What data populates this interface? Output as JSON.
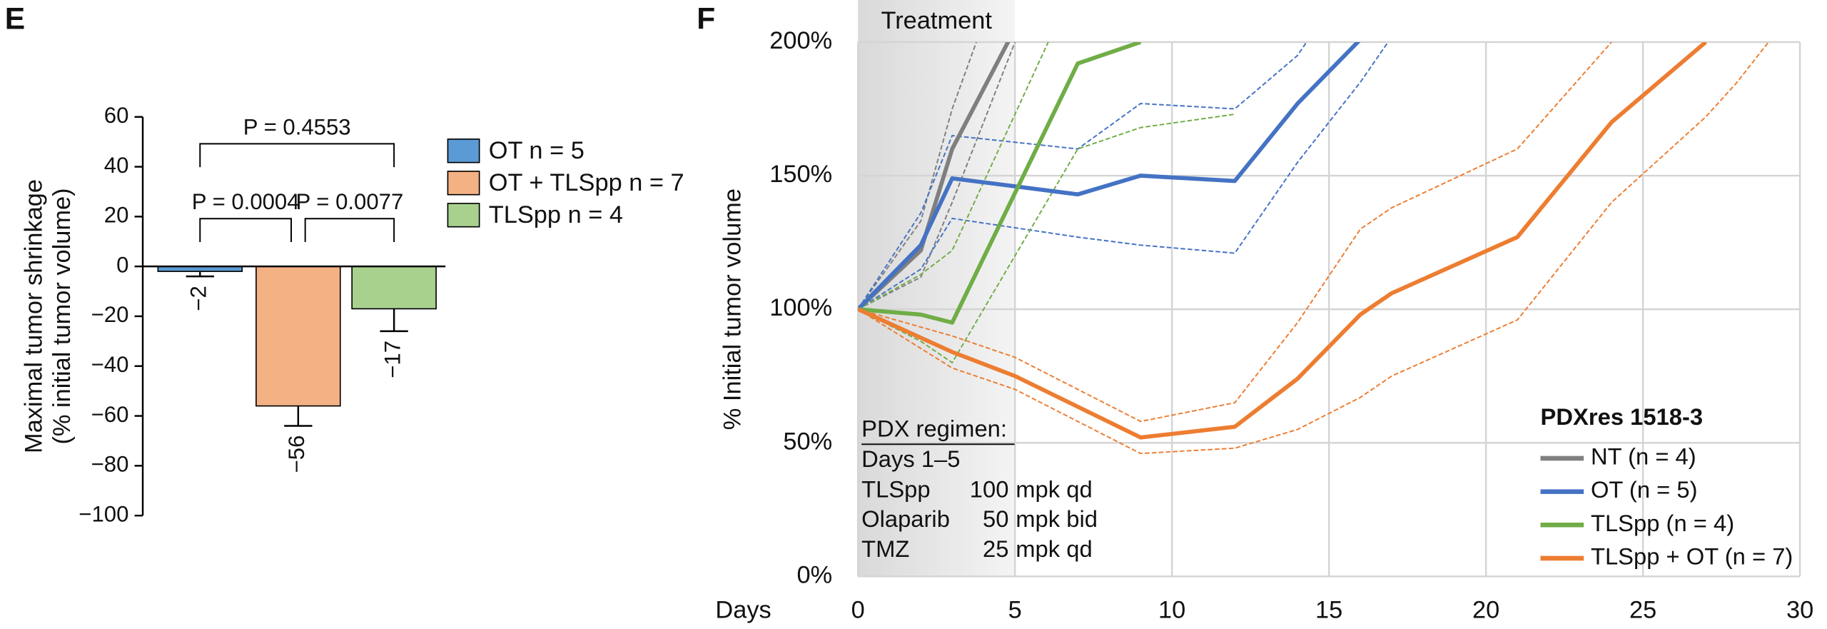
{
  "chart_data": [
    {
      "type": "bar",
      "panel": "E",
      "ylabel": [
        "Maximal tumor shrinkage",
        "(% initial tumor volume)"
      ],
      "ylim": [
        -100,
        60
      ],
      "yticks": [
        {
          "value": -100,
          "label": "−100"
        },
        {
          "value": -80,
          "label": "−80"
        },
        {
          "value": -60,
          "label": "−60"
        },
        {
          "value": -40,
          "label": "−40"
        },
        {
          "value": -20,
          "label": "−20"
        },
        0,
        20,
        40,
        60
      ],
      "series": [
        {
          "name": "OT n = 5",
          "color": "#5b9bd5",
          "values": [
            -2
          ],
          "errors": [
            2
          ],
          "value_labels": [
            "−2"
          ]
        },
        {
          "name": "OT + TLSpp n = 7",
          "color": "#f4b183",
          "values": [
            -56
          ],
          "errors": [
            8
          ],
          "value_labels": [
            "−56"
          ]
        },
        {
          "name": "TLSpp n = 4",
          "color": "#a9d18e",
          "values": [
            -17
          ],
          "errors": [
            9
          ],
          "value_labels": [
            "−17"
          ]
        }
      ],
      "annotations": [
        "P = 0.4553",
        "P = 0.0004",
        "P = 0.0077"
      ]
    },
    {
      "type": "line",
      "panel": "F",
      "xlabel": "Days",
      "ylabel": "% Initial tumor volume",
      "xlim": [
        0,
        30
      ],
      "xticks": [
        0,
        5,
        10,
        15,
        20,
        25,
        30
      ],
      "ylim": [
        0,
        200
      ],
      "yticks": [
        {
          "value": 0,
          "label": "0%"
        },
        {
          "value": 50,
          "label": "50%"
        },
        {
          "value": 100,
          "label": "100%"
        },
        {
          "value": 150,
          "label": "150%"
        },
        {
          "value": 200,
          "label": "200%"
        }
      ],
      "grid": true,
      "shade": {
        "label": "Treatment",
        "span": [
          0,
          5
        ]
      },
      "regimen": {
        "title": "PDX regimen:",
        "days": "Days 1–5",
        "rows": [
          [
            "TLSpp",
            "100",
            "mpk qd"
          ],
          [
            "Olaparib",
            "50",
            "mpk bid"
          ],
          [
            "TMZ",
            "25",
            "mpk qd"
          ]
        ]
      },
      "legend_title": "PDXres 1518-3",
      "legend": "lower right",
      "series": [
        {
          "name": "NT (n = 4)",
          "color": "#7f7f7f",
          "x": [
            0,
            2,
            3,
            5
          ],
          "values": [
            100,
            122,
            160,
            205
          ],
          "upper": [
            100,
            133,
            175,
            240
          ],
          "lower": [
            100,
            112,
            140,
            200
          ]
        },
        {
          "name": "OT (n = 5)",
          "color": "#4472c4",
          "x": [
            0,
            2,
            3,
            7,
            9,
            12,
            14,
            16,
            17
          ],
          "values": [
            100,
            124,
            149,
            143,
            150,
            148,
            177,
            201,
            null
          ],
          "upper": [
            100,
            136,
            165,
            160,
            177,
            175,
            195,
            230,
            null
          ],
          "lower": [
            100,
            115,
            134,
            127,
            124,
            121,
            155,
            185,
            202
          ]
        },
        {
          "name": "TLSpp (n = 4)",
          "color": "#70ad47",
          "x": [
            0,
            2,
            3,
            7,
            9,
            12
          ],
          "values": [
            100,
            98,
            95,
            192,
            200,
            null
          ],
          "upper": [
            100,
            113,
            122,
            224,
            250,
            null
          ],
          "lower": [
            100,
            88,
            80,
            160,
            168,
            173
          ]
        },
        {
          "name": "TLSpp + OT (n = 7)",
          "color": "#ed7d31",
          "x": [
            0,
            3,
            5,
            9,
            12,
            14,
            16,
            17,
            21,
            24,
            27,
            28,
            29
          ],
          "values": [
            100,
            84,
            75,
            52,
            56,
            74,
            98,
            106,
            127,
            170,
            200,
            null,
            null
          ],
          "upper": [
            100,
            90,
            82,
            58,
            65,
            95,
            130,
            138,
            160,
            200,
            null,
            null,
            null
          ],
          "lower": [
            100,
            78,
            70,
            46,
            48,
            55,
            67,
            75,
            96,
            140,
            172,
            185,
            200
          ]
        }
      ]
    }
  ]
}
